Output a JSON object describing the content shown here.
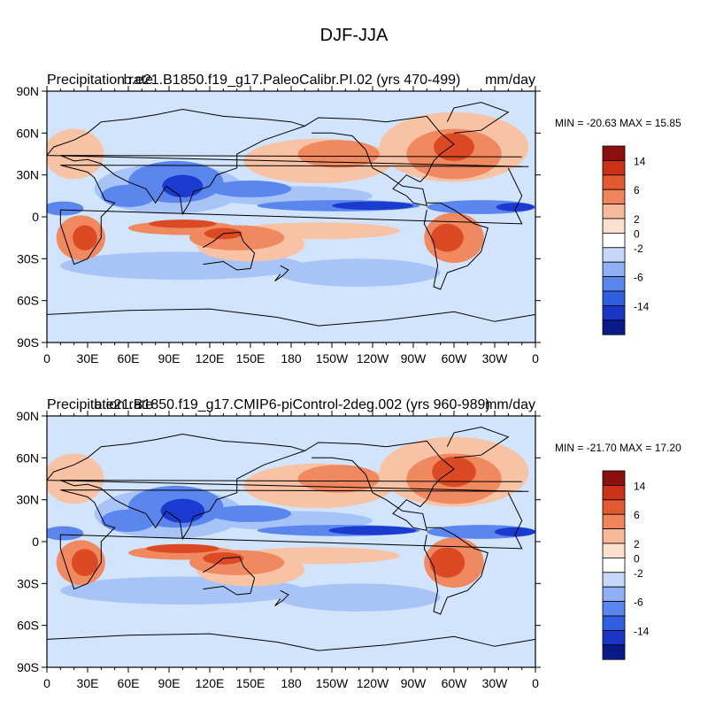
{
  "figure": {
    "title": "DJF-JJA"
  },
  "panels": [
    {
      "left_title": "Precipitation rate",
      "center_title": "b.e21.B1850.f19_g17.PaleoCalibr.PI.02 (yrs 470-499)",
      "units": "mm/day",
      "stats": "MIN = -20.63 MAX =  15.85"
    },
    {
      "left_title": "Precipitation rate",
      "center_title": "b.e21.B1850.f19_g17.CMIP6-piControl-2deg.002 (yrs 960-989)",
      "units": "mm/day",
      "stats": "MIN = -21.70 MAX =  17.20"
    }
  ],
  "axes": {
    "lon_labels": [
      "0",
      "30E",
      "60E",
      "90E",
      "120E",
      "150E",
      "180",
      "150W",
      "120W",
      "90W",
      "60W",
      "30W",
      "0"
    ],
    "lat_labels": [
      "90N",
      "60N",
      "30N",
      "0",
      "30S",
      "60S",
      "90S"
    ]
  },
  "colorbar": {
    "colors": [
      "#0a1a8a",
      "#1a35c8",
      "#2f5fe0",
      "#5a86ee",
      "#8fb0f4",
      "#c6d8fa",
      "#ffffff",
      "#fbe0cf",
      "#f8b89a",
      "#f2845c",
      "#e45a30",
      "#cc3218",
      "#8c0f0f"
    ],
    "tick_labels": [
      "-14",
      "-6",
      "-2",
      "0",
      "2",
      "6",
      "14"
    ]
  },
  "map_colors": {
    "ocean_base": "#d2e4fb",
    "light_red": "#f8c2a4",
    "mid_red": "#f08860",
    "strong_red": "#dc4a24",
    "light_blue": "#a8c4f6",
    "mid_blue": "#5a86ee",
    "strong_blue": "#1a3ad0"
  }
}
